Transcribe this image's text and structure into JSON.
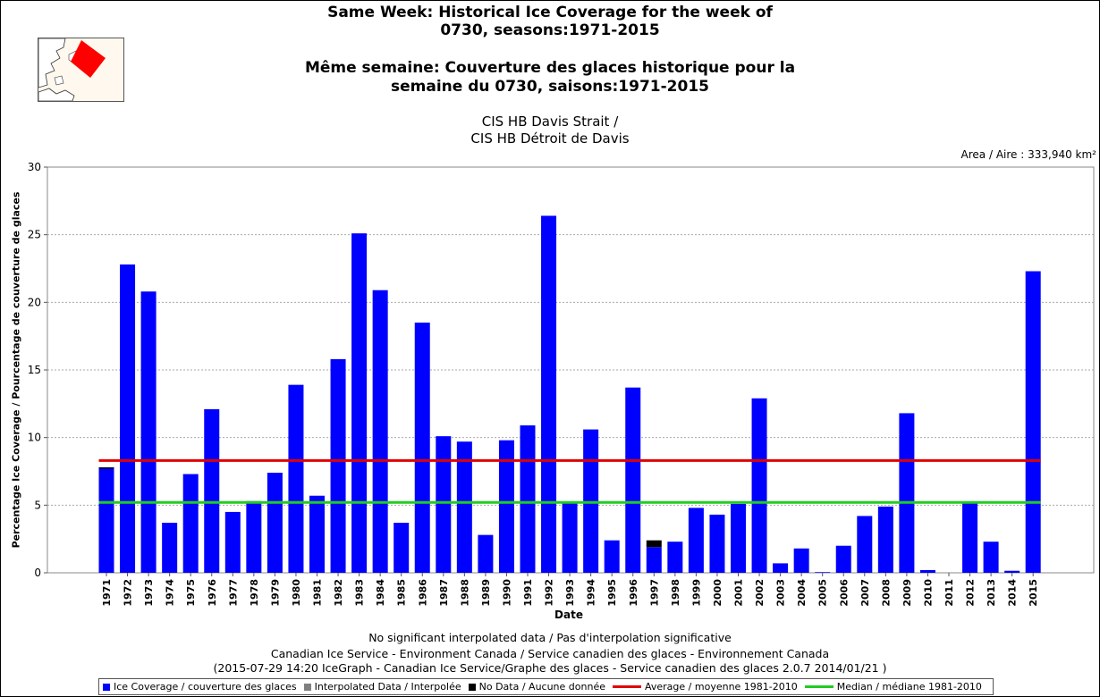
{
  "header": {
    "title_en_1": "Same Week: Historical Ice Coverage for the week of",
    "title_en_2": "0730, seasons:1971-2015",
    "title_fr_1": "Même semaine: Couverture des glaces historique pour la",
    "title_fr_2": "semaine du 0730, saisons:1971-2015",
    "region_1": "CIS HB Davis Strait /",
    "region_2": "CIS HB Détroit de Davis",
    "area": "Area / Aire : 333,940 km²"
  },
  "colors": {
    "ice": "#0000ff",
    "nodata": "#000000",
    "interpolated": "#808080",
    "average": "#e00000",
    "median": "#22cc22"
  },
  "chart_data": {
    "type": "bar",
    "xlabel": "Date",
    "ylabel": "Percentage Ice Coverage / Pourcentage de couverture de glaces",
    "ylim": [
      0,
      30
    ],
    "yticks": [
      0,
      5,
      10,
      15,
      20,
      25,
      30
    ],
    "grid": true,
    "categories": [
      "1971",
      "1972",
      "1973",
      "1974",
      "1975",
      "1976",
      "1977",
      "1978",
      "1979",
      "1980",
      "1981",
      "1982",
      "1983",
      "1984",
      "1985",
      "1986",
      "1987",
      "1988",
      "1989",
      "1990",
      "1991",
      "1992",
      "1993",
      "1994",
      "1995",
      "1996",
      "1997",
      "1998",
      "1999",
      "2000",
      "2001",
      "2002",
      "2003",
      "2004",
      "2005",
      "2006",
      "2007",
      "2008",
      "2009",
      "2010",
      "2011",
      "2012",
      "2013",
      "2014",
      "2015"
    ],
    "series": [
      {
        "name": "Ice Coverage / couverture des glaces",
        "values": [
          7.7,
          22.8,
          20.8,
          3.7,
          7.3,
          12.1,
          4.5,
          5.3,
          7.4,
          13.9,
          5.7,
          15.8,
          25.1,
          20.9,
          3.7,
          18.5,
          10.1,
          9.7,
          2.8,
          9.8,
          10.9,
          26.4,
          5.2,
          10.6,
          2.4,
          13.7,
          1.9,
          2.3,
          4.8,
          4.3,
          5.1,
          12.9,
          0.7,
          1.8,
          0.05,
          2.0,
          4.2,
          4.9,
          11.8,
          0.2,
          0.0,
          5.2,
          2.3,
          0.15,
          22.3
        ]
      },
      {
        "name": "No Data / Aucune donnée",
        "values": [
          0.1,
          0,
          0,
          0,
          0,
          0,
          0,
          0,
          0,
          0,
          0,
          0,
          0,
          0,
          0,
          0,
          0,
          0,
          0,
          0,
          0,
          0,
          0,
          0,
          0,
          0,
          0.5,
          0,
          0,
          0,
          0,
          0,
          0,
          0,
          0,
          0,
          0,
          0,
          0,
          0,
          0,
          0,
          0,
          0,
          0
        ]
      }
    ],
    "average": {
      "name": "Average / moyenne 1981-2010",
      "value": 8.3
    },
    "median": {
      "name": "Median / médiane 1981-2010",
      "value": 5.2
    }
  },
  "legend": {
    "ice": "Ice Coverage / couverture des glaces",
    "interpolated": "Interpolated Data / Interpolée",
    "nodata": "No Data / Aucune donnée",
    "average": "Average / moyenne 1981-2010",
    "median": "Median / médiane 1981-2010"
  },
  "footer": {
    "line1": "No significant interpolated data / Pas d'interpolation significative",
    "line2": "Canadian Ice Service - Environment Canada / Service canadien des glaces - Environnement Canada",
    "line3": "(2015-07-29 14:20 IceGraph - Canadian Ice Service/Graphe des glaces - Service canadien des glaces 2.0.7 2014/01/21 )"
  }
}
